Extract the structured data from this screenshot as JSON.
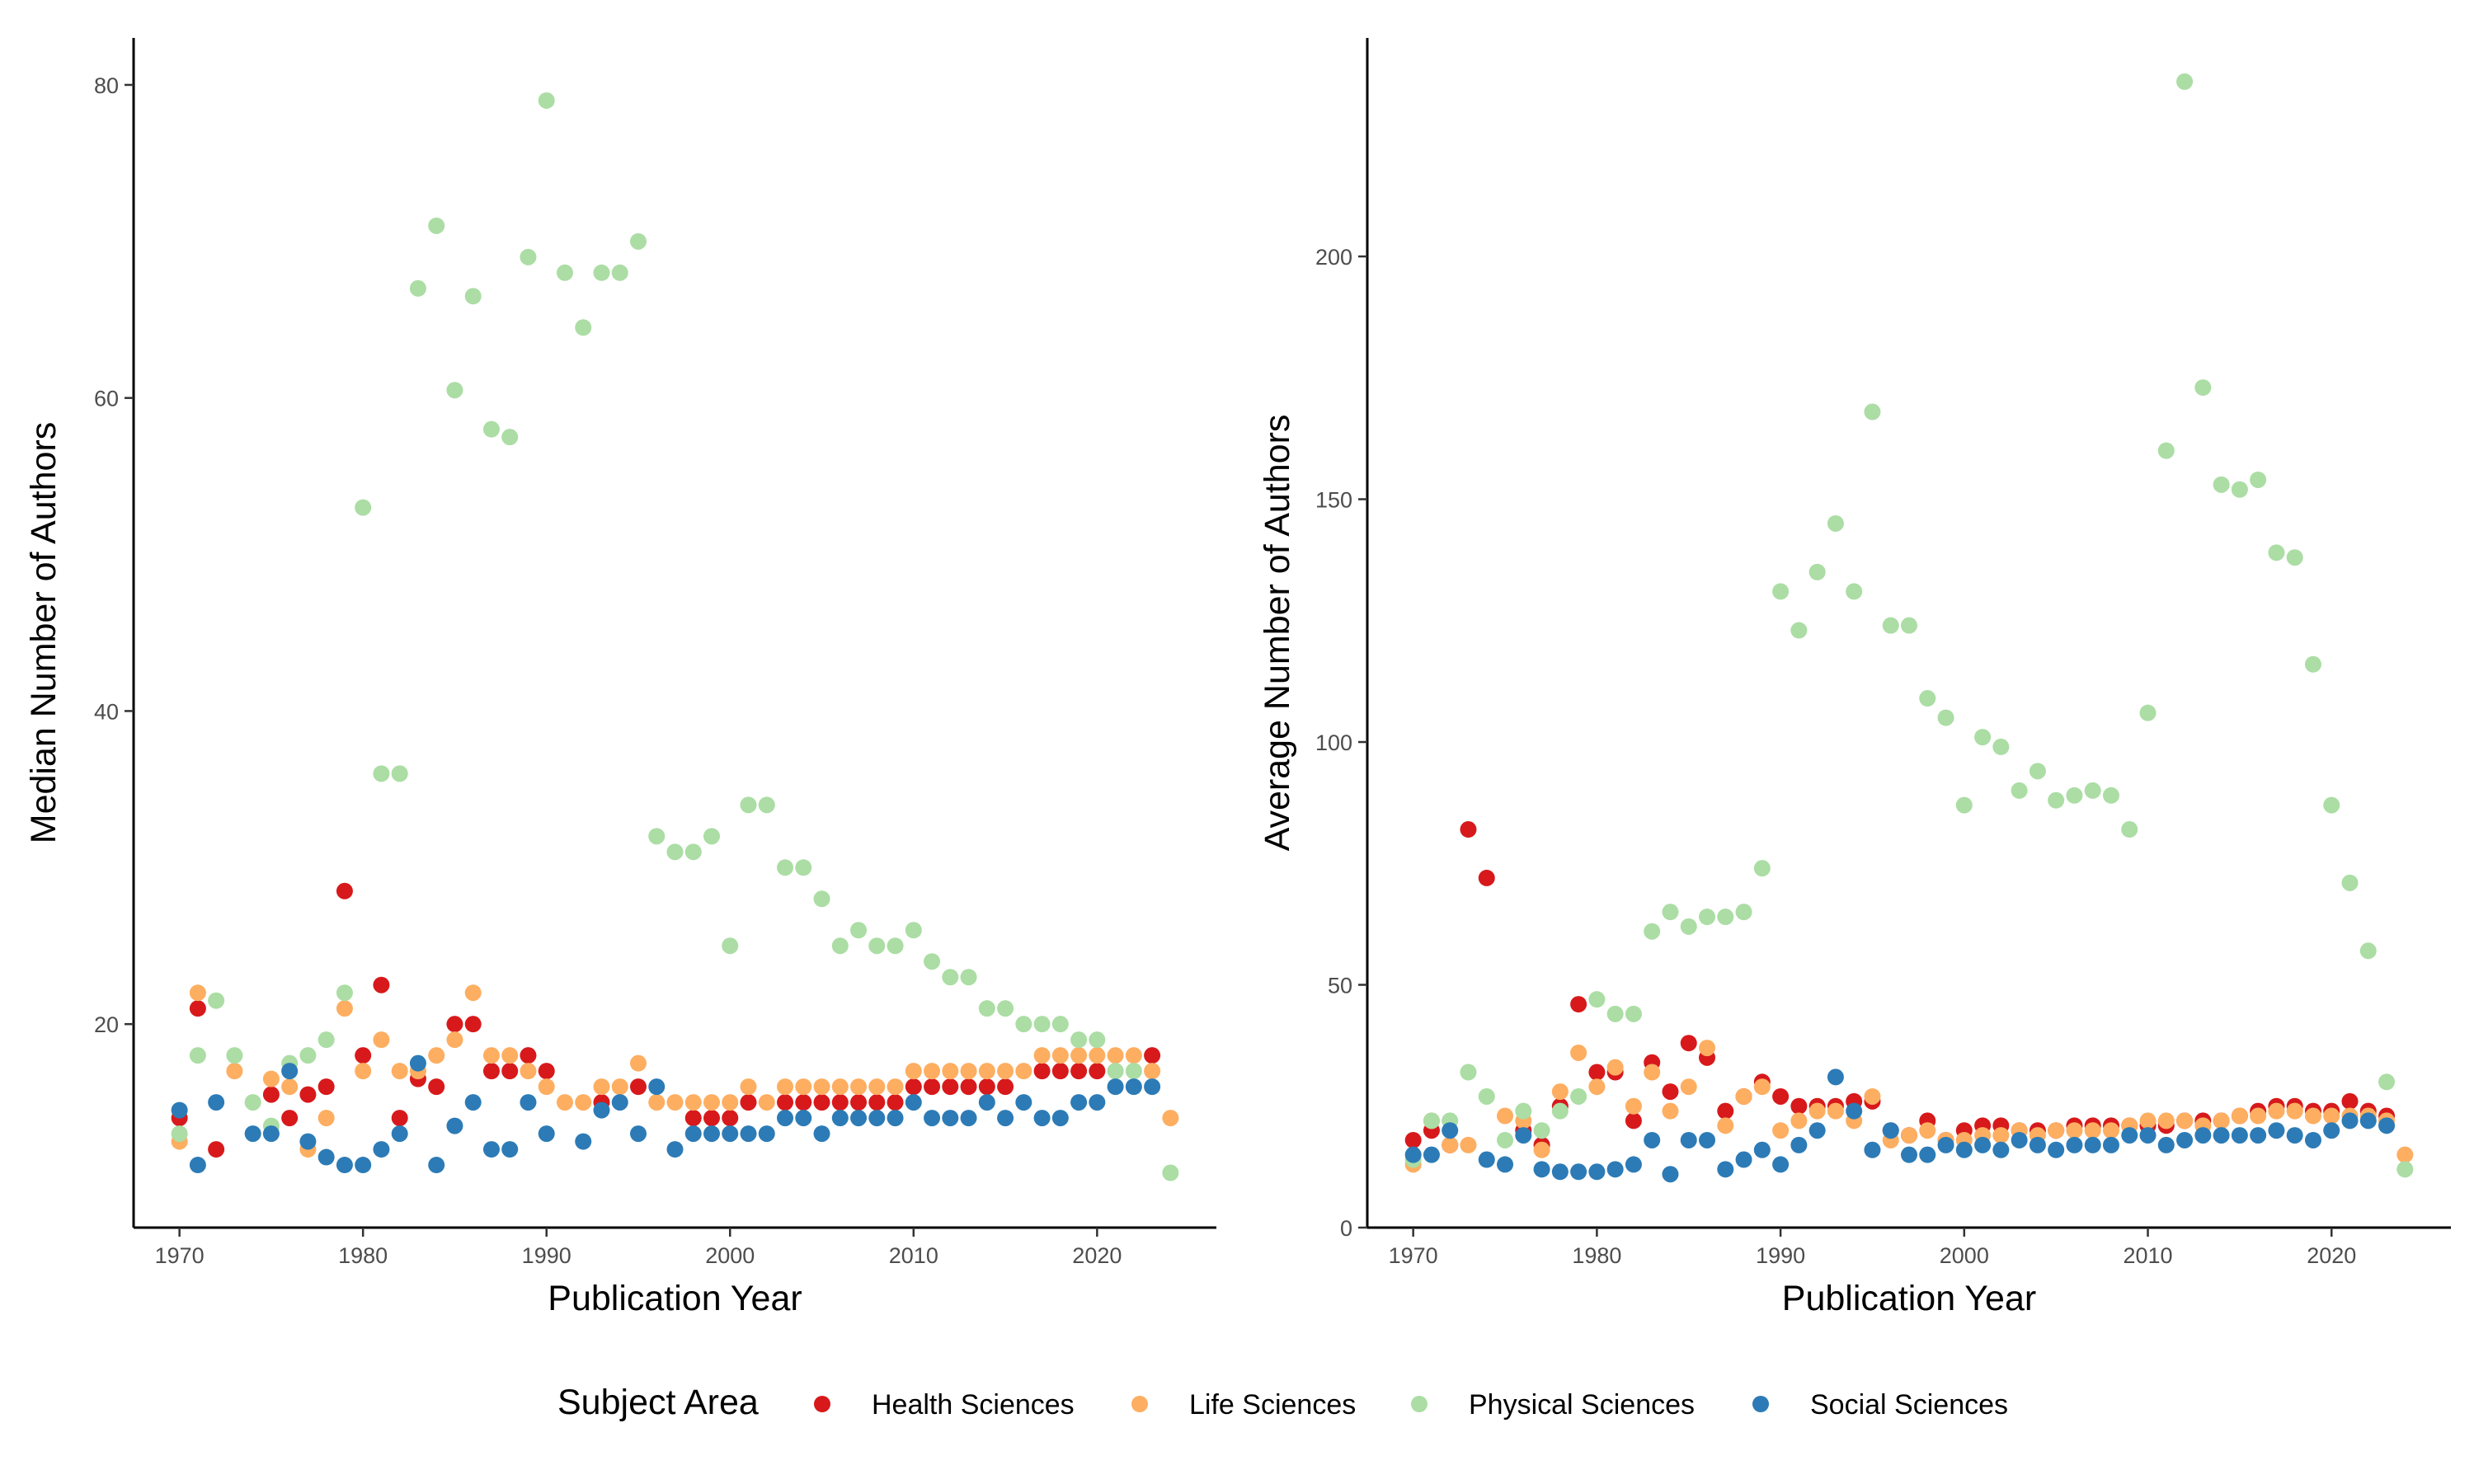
{
  "chart_data": [
    {
      "type": "scatter",
      "xlabel": "Publication Year",
      "ylabel": "Median Number of Authors",
      "xlim": [
        1967.5,
        2026.5
      ],
      "ylim": [
        7,
        83
      ],
      "xticks": [
        1970,
        1980,
        1990,
        2000,
        2010,
        2020
      ],
      "yticks": [
        20,
        40,
        60,
        80
      ],
      "grid": false,
      "series": [
        {
          "name": "Health Sciences",
          "color": "#d7191c",
          "x": [
            1970,
            1971,
            1972,
            1975,
            1976,
            1977,
            1978,
            1979,
            1980,
            1981,
            1982,
            1983,
            1984,
            1985,
            1986,
            1987,
            1988,
            1989,
            1990,
            1993,
            1995,
            1998,
            1999,
            2000,
            2001,
            2003,
            2004,
            2005,
            2006,
            2007,
            2008,
            2009,
            2010,
            2011,
            2012,
            2013,
            2014,
            2015,
            2017,
            2018,
            2019,
            2020,
            2023
          ],
          "y": [
            14,
            21,
            12,
            15.5,
            14,
            15.5,
            16,
            28.5,
            18,
            22.5,
            14,
            16.5,
            16,
            20,
            20,
            17,
            17,
            18,
            17,
            15,
            16,
            14,
            14,
            14,
            15,
            15,
            15,
            15,
            15,
            15,
            15,
            15,
            16,
            16,
            16,
            16,
            16,
            16,
            17,
            17,
            17,
            17,
            18
          ]
        },
        {
          "name": "Life Sciences",
          "color": "#fdae61",
          "x": [
            1970,
            1971,
            1973,
            1975,
            1976,
            1977,
            1978,
            1979,
            1980,
            1981,
            1982,
            1983,
            1984,
            1985,
            1986,
            1987,
            1988,
            1989,
            1990,
            1991,
            1992,
            1993,
            1994,
            1995,
            1996,
            1997,
            1998,
            1999,
            2000,
            2001,
            2002,
            2003,
            2004,
            2005,
            2006,
            2007,
            2008,
            2009,
            2010,
            2011,
            2012,
            2013,
            2014,
            2015,
            2016,
            2017,
            2018,
            2019,
            2020,
            2021,
            2022,
            2023,
            2024
          ],
          "y": [
            12.5,
            22,
            17,
            16.5,
            16,
            12,
            14,
            21,
            17,
            19,
            17,
            17,
            18,
            19,
            22,
            18,
            18,
            17,
            16,
            15,
            15,
            16,
            16,
            17.5,
            15,
            15,
            15,
            15,
            15,
            16,
            15,
            16,
            16,
            16,
            16,
            16,
            16,
            16,
            17,
            17,
            17,
            17,
            17,
            17,
            17,
            18,
            18,
            18,
            18,
            18,
            18,
            17,
            14
          ]
        },
        {
          "name": "Physical Sciences",
          "color": "#abdda4",
          "x": [
            1970,
            1971,
            1972,
            1973,
            1974,
            1975,
            1976,
            1977,
            1978,
            1979,
            1980,
            1981,
            1982,
            1983,
            1984,
            1985,
            1986,
            1987,
            1988,
            1989,
            1990,
            1991,
            1992,
            1993,
            1994,
            1995,
            1996,
            1997,
            1998,
            1999,
            2000,
            2001,
            2002,
            2003,
            2004,
            2005,
            2006,
            2007,
            2008,
            2009,
            2010,
            2011,
            2012,
            2013,
            2014,
            2015,
            2016,
            2017,
            2018,
            2019,
            2020,
            2021,
            2022,
            2024
          ],
          "y": [
            13,
            18,
            21.5,
            18,
            15,
            13.5,
            17.5,
            18,
            19,
            22,
            53,
            36,
            36,
            67,
            71,
            60.5,
            66.5,
            58,
            57.5,
            69,
            79,
            68,
            64.5,
            68,
            68,
            70,
            32,
            31,
            31,
            32,
            25,
            34,
            34,
            30,
            30,
            28,
            25,
            26,
            25,
            25,
            26,
            24,
            23,
            23,
            21,
            21,
            20,
            20,
            20,
            19,
            19,
            17,
            17,
            10.5
          ]
        },
        {
          "name": "Social Sciences",
          "color": "#2c7bb6",
          "x": [
            1970,
            1971,
            1972,
            1974,
            1975,
            1976,
            1977,
            1978,
            1979,
            1980,
            1981,
            1982,
            1983,
            1984,
            1985,
            1986,
            1987,
            1988,
            1989,
            1990,
            1992,
            1993,
            1994,
            1995,
            1996,
            1997,
            1998,
            1999,
            2000,
            2001,
            2002,
            2003,
            2004,
            2005,
            2006,
            2007,
            2008,
            2009,
            2010,
            2011,
            2012,
            2013,
            2014,
            2015,
            2016,
            2017,
            2018,
            2019,
            2020,
            2021,
            2022,
            2023
          ],
          "y": [
            14.5,
            11,
            15,
            13,
            13,
            17,
            12.5,
            11.5,
            11,
            11,
            12,
            13,
            17.5,
            11,
            13.5,
            15,
            12,
            12,
            15,
            13,
            12.5,
            14.5,
            15,
            13,
            16,
            12,
            13,
            13,
            13,
            13,
            13,
            14,
            14,
            13,
            14,
            14,
            14,
            14,
            15,
            14,
            14,
            14,
            15,
            14,
            15,
            14,
            14,
            15,
            15,
            16,
            16,
            16
          ]
        }
      ]
    },
    {
      "type": "scatter",
      "xlabel": "Publication Year",
      "ylabel": "Average Number of Authors",
      "xlim": [
        1967.5,
        2026.5
      ],
      "ylim": [
        0,
        245
      ],
      "xticks": [
        1970,
        1980,
        1990,
        2000,
        2010,
        2020
      ],
      "yticks": [
        0,
        50,
        100,
        150,
        200
      ],
      "grid": false,
      "series": [
        {
          "name": "Health Sciences",
          "color": "#d7191c",
          "x": [
            1970,
            1971,
            1972,
            1973,
            1974,
            1976,
            1977,
            1978,
            1979,
            1980,
            1981,
            1982,
            1983,
            1984,
            1985,
            1986,
            1987,
            1988,
            1989,
            1990,
            1991,
            1992,
            1993,
            1994,
            1995,
            1996,
            1997,
            1998,
            1999,
            2000,
            2001,
            2002,
            2003,
            2004,
            2005,
            2006,
            2007,
            2008,
            2009,
            2010,
            2011,
            2012,
            2013,
            2014,
            2015,
            2016,
            2017,
            2018,
            2019,
            2020,
            2021,
            2022,
            2023
          ],
          "y": [
            18,
            20,
            17,
            82,
            72,
            20,
            17,
            25,
            46,
            32,
            32,
            22,
            34,
            28,
            38,
            35,
            24,
            27,
            30,
            27,
            25,
            25,
            25,
            26,
            26,
            20,
            19,
            22,
            18,
            20,
            21,
            21,
            20,
            20,
            20,
            21,
            21,
            21,
            21,
            21,
            21,
            22,
            22,
            22,
            23,
            24,
            25,
            25,
            24,
            24,
            26,
            24,
            23
          ]
        },
        {
          "name": "Life Sciences",
          "color": "#fdae61",
          "x": [
            1970,
            1971,
            1972,
            1973,
            1975,
            1976,
            1977,
            1978,
            1979,
            1980,
            1981,
            1982,
            1983,
            1984,
            1985,
            1986,
            1987,
            1988,
            1989,
            1990,
            1991,
            1992,
            1993,
            1994,
            1995,
            1996,
            1997,
            1998,
            1999,
            2000,
            2001,
            2002,
            2003,
            2004,
            2005,
            2006,
            2007,
            2008,
            2009,
            2010,
            2011,
            2012,
            2013,
            2014,
            2015,
            2016,
            2017,
            2018,
            2019,
            2020,
            2021,
            2022,
            2023,
            2024
          ],
          "y": [
            13,
            22,
            17,
            17,
            23,
            22,
            16,
            28,
            36,
            29,
            33,
            25,
            32,
            24,
            29,
            37,
            21,
            27,
            29,
            20,
            22,
            24,
            24,
            22,
            27,
            18,
            19,
            20,
            18,
            18,
            19,
            19,
            20,
            19,
            20,
            20,
            20,
            20,
            21,
            22,
            22,
            22,
            21,
            22,
            23,
            23,
            24,
            24,
            23,
            23,
            23,
            23,
            22,
            15
          ]
        },
        {
          "name": "Physical Sciences",
          "color": "#abdda4",
          "x": [
            1970,
            1971,
            1972,
            1973,
            1974,
            1975,
            1976,
            1977,
            1978,
            1979,
            1980,
            1981,
            1982,
            1983,
            1984,
            1985,
            1986,
            1987,
            1988,
            1989,
            1990,
            1991,
            1992,
            1993,
            1994,
            1995,
            1996,
            1997,
            1998,
            1999,
            2000,
            2001,
            2002,
            2003,
            2004,
            2005,
            2006,
            2007,
            2008,
            2009,
            2010,
            2011,
            2012,
            2013,
            2014,
            2015,
            2016,
            2017,
            2018,
            2019,
            2020,
            2021,
            2022,
            2023,
            2024
          ],
          "y": [
            14,
            22,
            22,
            32,
            27,
            18,
            24,
            20,
            24,
            27,
            47,
            44,
            44,
            61,
            65,
            62,
            64,
            64,
            65,
            74,
            131,
            123,
            135,
            145,
            131,
            168,
            124,
            124,
            109,
            105,
            87,
            101,
            99,
            90,
            94,
            88,
            89,
            90,
            89,
            82,
            106,
            160,
            236,
            173,
            153,
            152,
            154,
            139,
            138,
            116,
            87,
            71,
            57,
            30,
            12
          ]
        },
        {
          "name": "Social Sciences",
          "color": "#2c7bb6",
          "x": [
            1970,
            1971,
            1972,
            1974,
            1975,
            1976,
            1977,
            1978,
            1979,
            1980,
            1981,
            1982,
            1983,
            1984,
            1985,
            1986,
            1987,
            1988,
            1989,
            1990,
            1991,
            1992,
            1993,
            1994,
            1995,
            1996,
            1997,
            1998,
            1999,
            2000,
            2001,
            2002,
            2003,
            2004,
            2005,
            2006,
            2007,
            2008,
            2009,
            2010,
            2011,
            2012,
            2013,
            2014,
            2015,
            2016,
            2017,
            2018,
            2019,
            2020,
            2021,
            2022,
            2023
          ],
          "y": [
            15,
            15,
            20,
            14,
            13,
            19,
            12,
            11.5,
            11.5,
            11.5,
            12,
            13,
            18,
            11,
            18,
            18,
            12,
            14,
            16,
            13,
            17,
            20,
            31,
            24,
            16,
            20,
            15,
            15,
            17,
            16,
            17,
            16,
            18,
            17,
            16,
            17,
            17,
            17,
            19,
            19,
            17,
            18,
            19,
            19,
            19,
            19,
            20,
            19,
            18,
            20,
            22,
            22,
            21
          ]
        }
      ]
    }
  ],
  "legend": {
    "title": "Subject Area",
    "placement": "bottom",
    "items": [
      {
        "label": "Health Sciences",
        "color": "#d7191c"
      },
      {
        "label": "Life Sciences",
        "color": "#fdae61"
      },
      {
        "label": "Physical Sciences",
        "color": "#abdda4"
      },
      {
        "label": "Social Sciences",
        "color": "#2c7bb6"
      }
    ]
  }
}
